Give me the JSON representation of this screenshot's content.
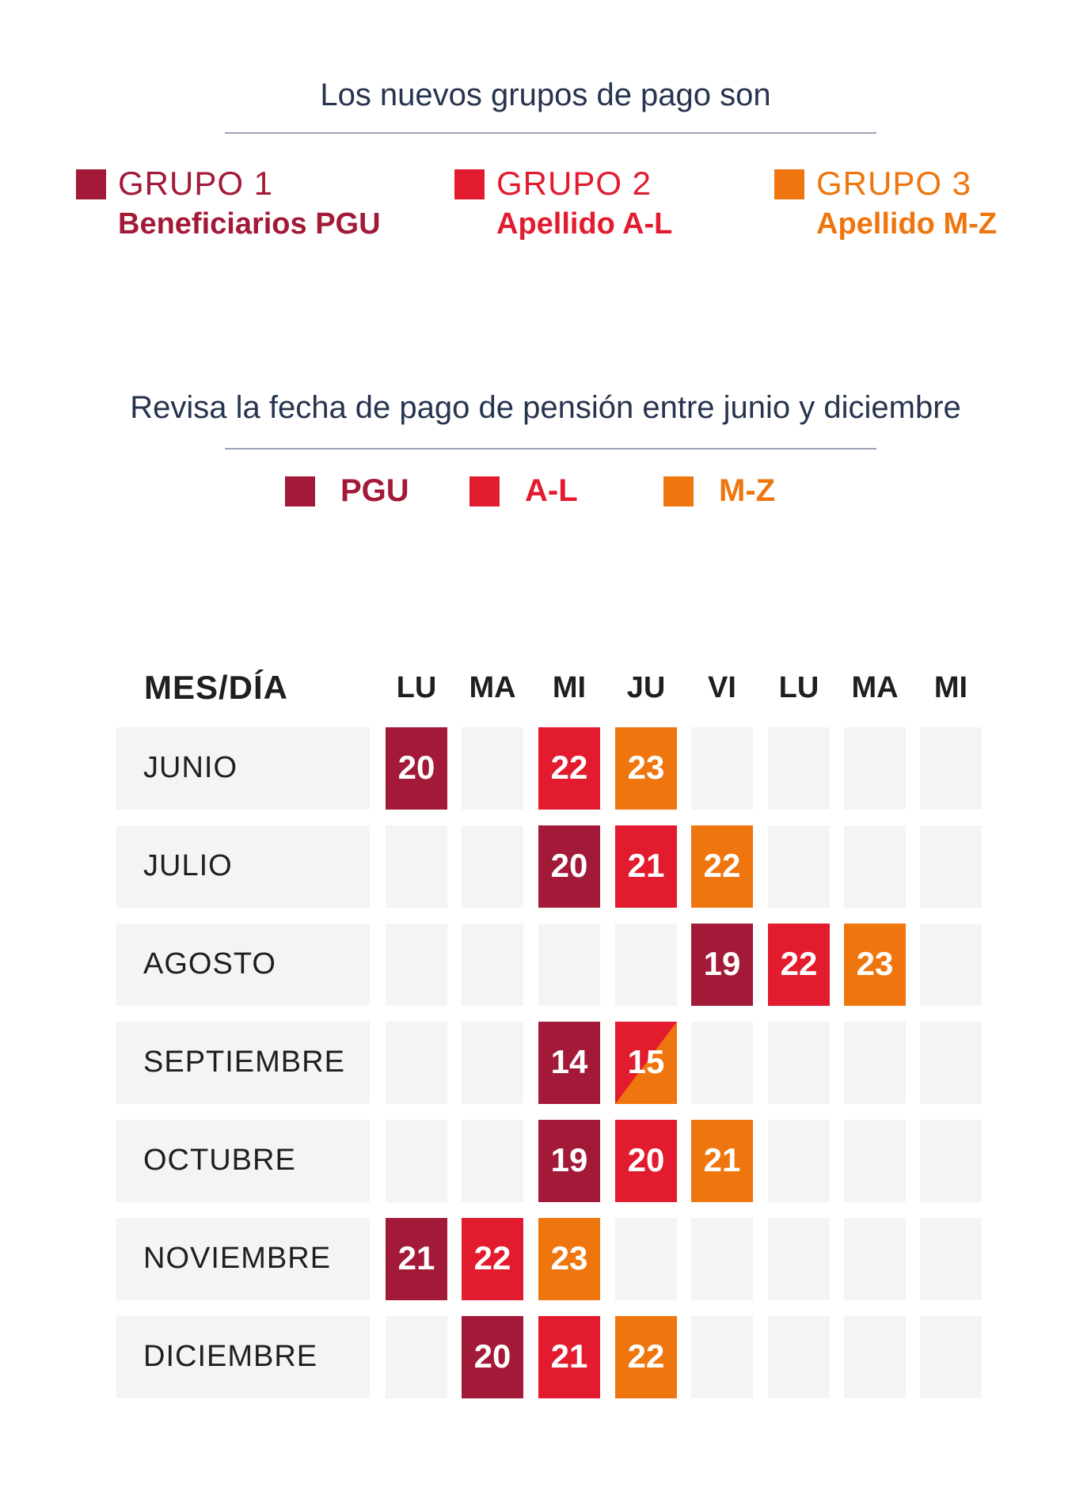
{
  "header": {
    "groups_title": "Los nuevos grupos de pago son",
    "calendar_title": "Revisa la fecha de pago de pensión entre junio y diciembre"
  },
  "colors": {
    "pgu": "#a31a38",
    "al": "#e31b2e",
    "mz": "#ef760e",
    "empty": "#f5f4f4"
  },
  "groups": [
    {
      "title": "GRUPO 1",
      "desc": "Beneficiarios PGU",
      "key": "pgu"
    },
    {
      "title": "GRUPO 2",
      "desc": "Apellido A-L",
      "key": "al"
    },
    {
      "title": "GRUPO 3",
      "desc": "Apellido M-Z",
      "key": "mz"
    }
  ],
  "legend": [
    {
      "label": "PGU",
      "key": "pgu"
    },
    {
      "label": "A-L",
      "key": "al"
    },
    {
      "label": "M-Z",
      "key": "mz"
    }
  ],
  "table": {
    "first_header": "MES/DÍA",
    "days": [
      "LU",
      "MA",
      "MI",
      "JU",
      "VI",
      "LU",
      "MA",
      "MI"
    ],
    "rows": [
      {
        "month": "JUNIO",
        "cells": [
          [
            "20",
            "pgu"
          ],
          null,
          [
            "22",
            "al"
          ],
          [
            "23",
            "mz"
          ],
          null,
          null,
          null,
          null
        ]
      },
      {
        "month": "JULIO",
        "cells": [
          null,
          null,
          [
            "20",
            "pgu"
          ],
          [
            "21",
            "al"
          ],
          [
            "22",
            "mz"
          ],
          null,
          null,
          null
        ]
      },
      {
        "month": "AGOSTO",
        "cells": [
          null,
          null,
          null,
          null,
          [
            "19",
            "pgu"
          ],
          [
            "22",
            "al"
          ],
          [
            "23",
            "mz"
          ],
          null
        ]
      },
      {
        "month": "SEPTIEMBRE",
        "cells": [
          null,
          null,
          [
            "14",
            "pgu"
          ],
          [
            "15",
            "al-mz"
          ],
          null,
          null,
          null,
          null
        ]
      },
      {
        "month": "OCTUBRE",
        "cells": [
          null,
          null,
          [
            "19",
            "pgu"
          ],
          [
            "20",
            "al"
          ],
          [
            "21",
            "mz"
          ],
          null,
          null,
          null
        ]
      },
      {
        "month": "NOVIEMBRE",
        "cells": [
          [
            "21",
            "pgu"
          ],
          [
            "22",
            "al"
          ],
          [
            "23",
            "mz"
          ],
          null,
          null,
          null,
          null,
          null
        ]
      },
      {
        "month": "DICIEMBRE",
        "cells": [
          null,
          [
            "20",
            "pgu"
          ],
          [
            "21",
            "al"
          ],
          [
            "22",
            "mz"
          ],
          null,
          null,
          null,
          null
        ]
      }
    ]
  }
}
